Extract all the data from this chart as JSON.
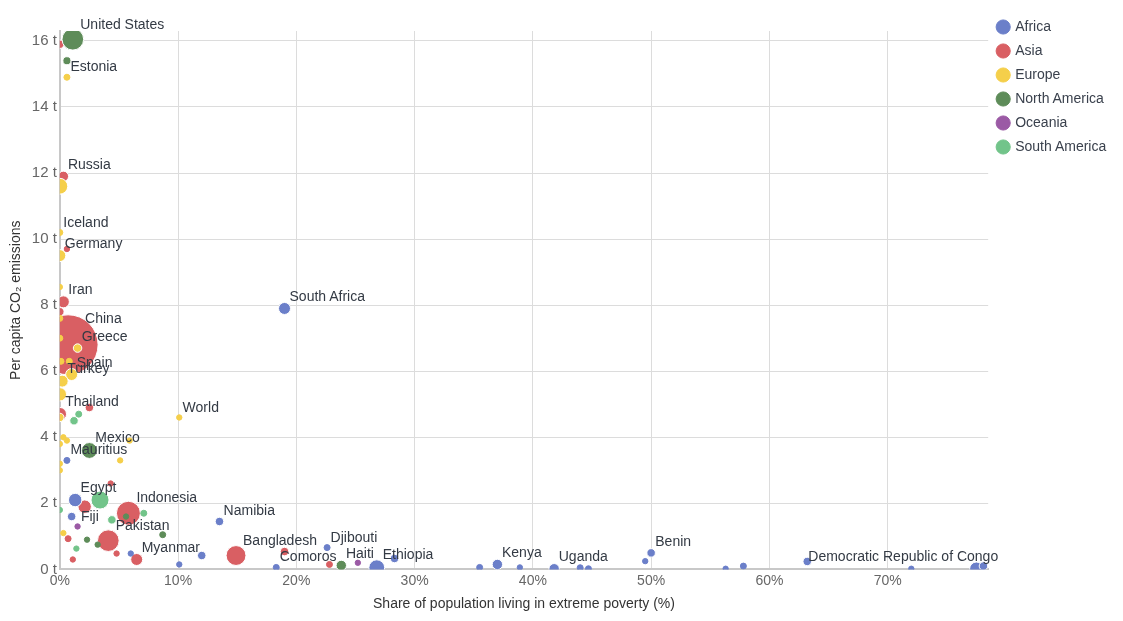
{
  "chart_data": {
    "type": "bubble",
    "xlabel": "Share of population living in extreme poverty (%)",
    "ylabel": "Per capita CO₂ emissions",
    "xlim": [
      0,
      78.5
    ],
    "ylim": [
      0,
      16.3
    ],
    "xticks": [
      {
        "value": 0,
        "label": "0%"
      },
      {
        "value": 10,
        "label": "10%"
      },
      {
        "value": 20,
        "label": "20%"
      },
      {
        "value": 30,
        "label": "30%"
      },
      {
        "value": 40,
        "label": "40%"
      },
      {
        "value": 50,
        "label": "50%"
      },
      {
        "value": 60,
        "label": "60%"
      },
      {
        "value": 70,
        "label": "70%"
      }
    ],
    "yticks": [
      {
        "value": 0,
        "label": "0 t"
      },
      {
        "value": 2,
        "label": "2 t"
      },
      {
        "value": 4,
        "label": "4 t"
      },
      {
        "value": 6,
        "label": "6 t"
      },
      {
        "value": 8,
        "label": "8 t"
      },
      {
        "value": 10,
        "label": "10 t"
      },
      {
        "value": 12,
        "label": "12 t"
      },
      {
        "value": 14,
        "label": "14 t"
      },
      {
        "value": 16,
        "label": "16 t"
      }
    ],
    "grid": true,
    "legend": "top right",
    "series": [
      {
        "name": "Africa",
        "color": "#6b7fc9",
        "x": [
          0.6,
          1.3,
          1,
          19,
          13.5,
          12,
          10.1,
          22.6,
          18.3,
          26.8,
          28.3,
          35.5,
          37,
          38.9,
          41.8,
          44,
          44.7,
          49.5,
          50,
          56.3,
          57.8,
          63.2,
          72,
          77.5,
          78.1,
          6
        ],
        "values": [
          3.3,
          2.1,
          1.6,
          7.9,
          1.45,
          0.42,
          0.15,
          0.66,
          0.06,
          0.05,
          0.33,
          0.06,
          0.15,
          0.06,
          0.02,
          0.05,
          0.02,
          0.25,
          0.5,
          0.02,
          0.1,
          0.24,
          0.02,
          0.02,
          0.1,
          0.48
        ],
        "sizes": [
          0.01,
          0.05,
          0.02,
          0.04,
          0.02,
          0.02,
          0.008,
          0.01,
          0.01,
          0.07,
          0.02,
          0.01,
          0.03,
          0.008,
          0.03,
          0.01,
          0.01,
          0.008,
          0.02,
          0.008,
          0.01,
          0.02,
          0.008,
          0.05,
          0.02,
          0.008
        ]
      },
      {
        "name": "Asia",
        "color": "#d95f63",
        "x": [
          0.7,
          0,
          0.3,
          0.6,
          0.3,
          0,
          2.5,
          5.8,
          2.1,
          4.1,
          6.5,
          14.9,
          19,
          0.7,
          4.8,
          1.1,
          22.8,
          4.3,
          0
        ],
        "values": [
          6.8,
          15.9,
          11.9,
          9.7,
          8.1,
          7.8,
          4.9,
          1.7,
          1.9,
          0.87,
          0.3,
          0.42,
          0.54,
          0.93,
          0.48,
          0.3,
          0.15,
          2.6,
          4.7
        ],
        "sizes": [
          1,
          0.02,
          0.03,
          0.008,
          0.04,
          0.02,
          0.02,
          0.16,
          0.05,
          0.13,
          0.04,
          0.11,
          0.02,
          0.01,
          0.008,
          0.008,
          0.01,
          0.008,
          0.05
        ]
      },
      {
        "name": "Europe",
        "color": "#f5cf4a",
        "x": [
          0.6,
          0,
          0,
          0,
          0,
          0,
          0,
          1.5,
          0.1,
          0.8,
          1,
          0.2,
          0,
          0,
          0.3,
          0.6,
          0,
          5.9,
          0,
          0,
          0.3,
          5.1
        ],
        "values": [
          14.9,
          11.6,
          10.2,
          9.5,
          8.55,
          7.6,
          7,
          6.7,
          6.3,
          6.3,
          5.9,
          5.7,
          5.3,
          4.6,
          4,
          3.9,
          3.8,
          3.9,
          3,
          3.2,
          1.1,
          3.3
        ],
        "sizes": [
          0.01,
          0.07,
          0.01,
          0.04,
          0.008,
          0.01,
          0.01,
          0.02,
          0.01,
          0.01,
          0.04,
          0.04,
          0.05,
          0.02,
          0.008,
          0.008,
          0.008,
          0.008,
          0.008,
          0.008,
          0.008,
          0.008
        ]
      },
      {
        "name": "North America",
        "color": "#5e8c59",
        "x": [
          1.1,
          0.6,
          2.5,
          8.7,
          2.3,
          3.2,
          23.8,
          5.6
        ],
        "values": [
          16.05,
          15.4,
          3.6,
          1.05,
          0.9,
          0.75,
          0.12,
          1.6
        ],
        "sizes": [
          0.13,
          0.018,
          0.07,
          0.01,
          0.008,
          0.008,
          0.03,
          0.008
        ]
      },
      {
        "name": "Oceania",
        "color": "#9b5aa5",
        "x": [
          1.5,
          25.2
        ],
        "values": [
          1.3,
          0.2
        ],
        "sizes": [
          0.008,
          0.008
        ]
      },
      {
        "name": "South America",
        "color": "#72c48a",
        "x": [
          3.4,
          1.2,
          1.6,
          7.1,
          4.4,
          1.4,
          0
        ],
        "values": [
          2.1,
          4.5,
          4.7,
          1.7,
          1.5,
          0.63,
          1.8
        ],
        "sizes": [
          0.09,
          0.02,
          0.01,
          0.01,
          0.02,
          0.008,
          0.008
        ]
      },
      {
        "color": "#f5cf4a",
        "x": [
          10.1
        ],
        "values": [
          4.6
        ],
        "sizes": [
          0.008
        ]
      }
    ],
    "annotations": [
      {
        "text": "United States",
        "x": 1.1,
        "y": 16.05
      },
      {
        "text": "Estonia",
        "x": 0.6,
        "y": 14.9
      },
      {
        "text": "Russia",
        "x": 0.3,
        "y": 11.9
      },
      {
        "text": "Iceland",
        "x": 0,
        "y": 10.2
      },
      {
        "text": "Germany",
        "x": 0,
        "y": 9.5
      },
      {
        "text": "Iran",
        "x": 0.3,
        "y": 8.1
      },
      {
        "text": "China",
        "x": 0.7,
        "y": 6.8
      },
      {
        "text": "Greece",
        "x": 1.5,
        "y": 6.7
      },
      {
        "text": "Spain",
        "x": 1,
        "y": 5.9
      },
      {
        "text": "Turkey",
        "x": 0.2,
        "y": 5.7
      },
      {
        "text": "Thailand",
        "x": 0,
        "y": 4.7
      },
      {
        "text": "World",
        "x": 10.1,
        "y": 4.6
      },
      {
        "text": "Mexico",
        "x": 2.5,
        "y": 3.6
      },
      {
        "text": "Mauritius",
        "x": 0.6,
        "y": 3.3
      },
      {
        "text": "Egypt",
        "x": 1.3,
        "y": 2.1
      },
      {
        "text": "Indonesia",
        "x": 5.8,
        "y": 1.7
      },
      {
        "text": "Fiji",
        "x": 1.5,
        "y": 1.3
      },
      {
        "text": "Pakistan",
        "x": 4.1,
        "y": 0.87
      },
      {
        "text": "Myanmar",
        "x": 6.5,
        "y": 0.3
      },
      {
        "text": "Namibia",
        "x": 13.5,
        "y": 1.45
      },
      {
        "text": "Bangladesh",
        "x": 14.9,
        "y": 0.42
      },
      {
        "text": "Djibouti",
        "x": 22.6,
        "y": 0.66
      },
      {
        "text": "Comoros",
        "x": 18.3,
        "y": 0.06
      },
      {
        "text": "Haiti",
        "x": 23.8,
        "y": 0.12
      },
      {
        "text": "Ethiopia",
        "x": 26.8,
        "y": 0.05
      },
      {
        "text": "South Africa",
        "x": 19,
        "y": 7.9
      },
      {
        "text": "Kenya",
        "x": 37,
        "y": 0.15
      },
      {
        "text": "Uganda",
        "x": 41.8,
        "y": 0.02
      },
      {
        "text": "Benin",
        "x": 50,
        "y": 0.5
      },
      {
        "text": "Democratic Republic of Congo",
        "x": 77.5,
        "y": 0.02
      }
    ]
  }
}
